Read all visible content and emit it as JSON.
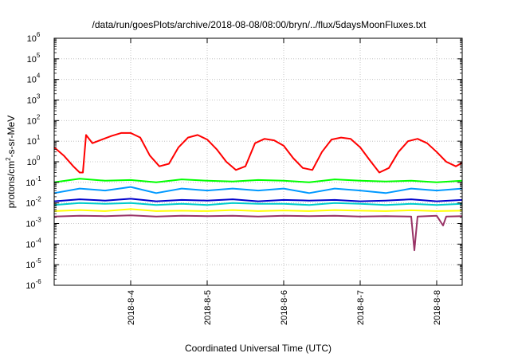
{
  "chart_data": {
    "type": "line",
    "title": "/data/run/goesPlots/archive/2018-08-08/08:00/bryn/../flux/5daysMoonFluxes.txt",
    "xlabel": "Coordinated Universal Time (UTC)",
    "ylabel_parts": {
      "base": "protons/cm",
      "sup": "2",
      "rest": "-s-sr-MeV"
    },
    "y_scale": "log",
    "ylim": [
      1e-06,
      1000000.0
    ],
    "y_ticks": [
      {
        "base": "10",
        "exp": "6"
      },
      {
        "base": "10",
        "exp": "5"
      },
      {
        "base": "10",
        "exp": "4"
      },
      {
        "base": "10",
        "exp": "3"
      },
      {
        "base": "10",
        "exp": "2"
      },
      {
        "base": "10",
        "exp": "1"
      },
      {
        "base": "10",
        "exp": "0"
      },
      {
        "base": "10",
        "exp": "-1"
      },
      {
        "base": "10",
        "exp": "-2"
      },
      {
        "base": "10",
        "exp": "-3"
      },
      {
        "base": "10",
        "exp": "-4"
      },
      {
        "base": "10",
        "exp": "-5"
      },
      {
        "base": "10",
        "exp": "-6"
      }
    ],
    "xlim": [
      "2018-08-03",
      "2018-08-08 08:00"
    ],
    "x_ticks": [
      "2018-8-4",
      "2018-8-5",
      "2018-8-6",
      "2018-8-7",
      "2018-8-8"
    ],
    "grid": true,
    "series": [
      {
        "color": "#ff0000",
        "x": [
          "2018-08-03",
          "2018-08-03 03:00",
          "2018-08-03 06:00",
          "2018-08-03 08:00",
          "2018-08-03 09:00",
          "2018-08-03 10:00",
          "2018-08-03 12:00",
          "2018-08-03 15:00",
          "2018-08-03 18:00",
          "2018-08-03 21:00",
          "2018-08-04",
          "2018-08-04 03:00",
          "2018-08-04 06:00",
          "2018-08-04 09:00",
          "2018-08-04 12:00",
          "2018-08-04 15:00",
          "2018-08-04 18:00",
          "2018-08-04 21:00",
          "2018-08-05",
          "2018-08-05 03:00",
          "2018-08-05 06:00",
          "2018-08-05 09:00",
          "2018-08-05 12:00",
          "2018-08-05 15:00",
          "2018-08-05 18:00",
          "2018-08-05 21:00",
          "2018-08-06",
          "2018-08-06 03:00",
          "2018-08-06 06:00",
          "2018-08-06 09:00",
          "2018-08-06 12:00",
          "2018-08-06 15:00",
          "2018-08-06 18:00",
          "2018-08-06 21:00",
          "2018-08-07",
          "2018-08-07 03:00",
          "2018-08-07 06:00",
          "2018-08-07 09:00",
          "2018-08-07 12:00",
          "2018-08-07 15:00",
          "2018-08-07 18:00",
          "2018-08-07 21:00",
          "2018-08-08",
          "2018-08-08 03:00",
          "2018-08-08 06:00",
          "2018-08-08 08:00"
        ],
        "y": [
          5.0,
          2.0,
          0.6,
          0.3,
          0.3,
          20.0,
          8.0,
          12.0,
          18.0,
          25.0,
          25.0,
          15.0,
          2.0,
          0.6,
          0.8,
          5.0,
          15.0,
          20.0,
          12.0,
          4.0,
          1.0,
          0.4,
          0.6,
          8.0,
          13.0,
          11.0,
          6.0,
          1.5,
          0.5,
          0.4,
          3.0,
          12.0,
          15.0,
          13.0,
          5.0,
          1.2,
          0.3,
          0.5,
          3.0,
          10.0,
          13.0,
          8.0,
          3.0,
          1.0,
          0.6,
          0.9
        ]
      },
      {
        "color": "#00ff00",
        "x": [
          "2018-08-03",
          "2018-08-03 08:00",
          "2018-08-03 16:00",
          "2018-08-04",
          "2018-08-04 08:00",
          "2018-08-04 16:00",
          "2018-08-05",
          "2018-08-05 08:00",
          "2018-08-05 16:00",
          "2018-08-06",
          "2018-08-06 08:00",
          "2018-08-06 16:00",
          "2018-08-07",
          "2018-08-07 08:00",
          "2018-08-07 16:00",
          "2018-08-08",
          "2018-08-08 08:00"
        ],
        "y": [
          0.1,
          0.15,
          0.12,
          0.13,
          0.1,
          0.14,
          0.12,
          0.11,
          0.13,
          0.12,
          0.1,
          0.14,
          0.12,
          0.11,
          0.12,
          0.1,
          0.12
        ]
      },
      {
        "color": "#0099ff",
        "x": [
          "2018-08-03",
          "2018-08-03 08:00",
          "2018-08-03 16:00",
          "2018-08-04",
          "2018-08-04 08:00",
          "2018-08-04 16:00",
          "2018-08-05",
          "2018-08-05 08:00",
          "2018-08-05 16:00",
          "2018-08-06",
          "2018-08-06 08:00",
          "2018-08-06 16:00",
          "2018-08-07",
          "2018-08-07 08:00",
          "2018-08-07 16:00",
          "2018-08-08",
          "2018-08-08 08:00"
        ],
        "y": [
          0.03,
          0.05,
          0.04,
          0.06,
          0.03,
          0.05,
          0.04,
          0.05,
          0.04,
          0.05,
          0.03,
          0.05,
          0.04,
          0.03,
          0.05,
          0.04,
          0.05
        ]
      },
      {
        "color": "#0000cc",
        "x": [
          "2018-08-03",
          "2018-08-03 08:00",
          "2018-08-03 16:00",
          "2018-08-04",
          "2018-08-04 08:00",
          "2018-08-04 16:00",
          "2018-08-05",
          "2018-08-05 08:00",
          "2018-08-05 16:00",
          "2018-08-06",
          "2018-08-06 08:00",
          "2018-08-06 16:00",
          "2018-08-07",
          "2018-08-07 08:00",
          "2018-08-07 16:00",
          "2018-08-08",
          "2018-08-08 08:00"
        ],
        "y": [
          0.012,
          0.015,
          0.013,
          0.016,
          0.012,
          0.014,
          0.013,
          0.015,
          0.012,
          0.014,
          0.013,
          0.014,
          0.012,
          0.013,
          0.015,
          0.012,
          0.014
        ]
      },
      {
        "color": "#00cccc",
        "x": [
          "2018-08-03",
          "2018-08-03 08:00",
          "2018-08-03 16:00",
          "2018-08-04",
          "2018-08-04 08:00",
          "2018-08-04 16:00",
          "2018-08-05",
          "2018-08-05 08:00",
          "2018-08-05 16:00",
          "2018-08-06",
          "2018-08-06 08:00",
          "2018-08-06 16:00",
          "2018-08-07",
          "2018-08-07 08:00",
          "2018-08-07 16:00",
          "2018-08-08",
          "2018-08-08 08:00"
        ],
        "y": [
          0.008,
          0.01,
          0.009,
          0.01,
          0.008,
          0.009,
          0.008,
          0.01,
          0.009,
          0.009,
          0.008,
          0.01,
          0.009,
          0.008,
          0.009,
          0.008,
          0.009
        ]
      },
      {
        "color": "#ffff00",
        "x": [
          "2018-08-03",
          "2018-08-03 08:00",
          "2018-08-03 16:00",
          "2018-08-04",
          "2018-08-04 08:00",
          "2018-08-04 16:00",
          "2018-08-05",
          "2018-08-05 08:00",
          "2018-08-05 16:00",
          "2018-08-06",
          "2018-08-06 08:00",
          "2018-08-06 16:00",
          "2018-08-07",
          "2018-08-07 08:00",
          "2018-08-07 16:00",
          "2018-08-08",
          "2018-08-08 08:00"
        ],
        "y": [
          0.004,
          0.0045,
          0.004,
          0.005,
          0.004,
          0.0042,
          0.004,
          0.0045,
          0.004,
          0.0043,
          0.004,
          0.0045,
          0.0042,
          0.004,
          0.0044,
          0.004,
          0.0042
        ]
      },
      {
        "color": "#993366",
        "x": [
          "2018-08-03",
          "2018-08-03 08:00",
          "2018-08-03 16:00",
          "2018-08-04",
          "2018-08-04 08:00",
          "2018-08-04 16:00",
          "2018-08-05",
          "2018-08-05 08:00",
          "2018-08-05 16:00",
          "2018-08-06",
          "2018-08-06 08:00",
          "2018-08-06 16:00",
          "2018-08-07",
          "2018-08-07 08:00",
          "2018-08-07 16:00",
          "2018-08-07 17:00",
          "2018-08-07 18:00",
          "2018-08-08",
          "2018-08-08 02:00",
          "2018-08-08 03:00",
          "2018-08-08 08:00"
        ],
        "y": [
          0.0022,
          0.0024,
          0.0023,
          0.0025,
          0.0022,
          0.0024,
          0.0023,
          0.0024,
          0.0022,
          0.0024,
          0.0023,
          0.0024,
          0.0022,
          0.0023,
          0.0022,
          5e-05,
          0.0022,
          0.0024,
          0.0008,
          0.0022,
          0.0023
        ]
      }
    ]
  }
}
